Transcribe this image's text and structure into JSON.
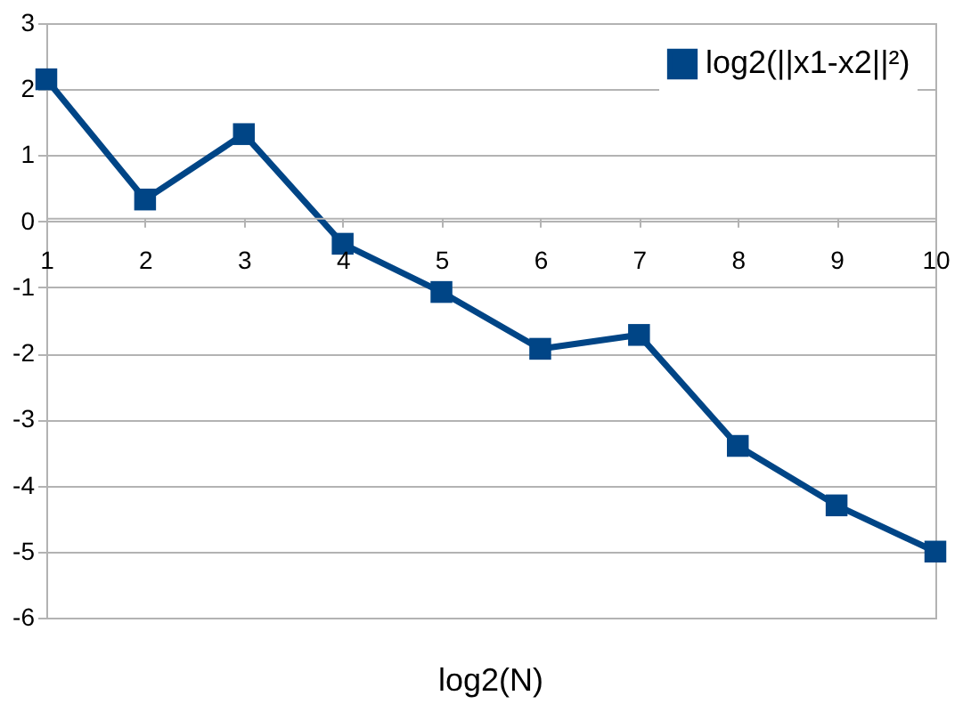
{
  "chart_data": {
    "type": "line",
    "xlabel": "log2(N)",
    "x": [
      1,
      2,
      3,
      4,
      5,
      6,
      7,
      8,
      9,
      10
    ],
    "series": [
      {
        "name": "log2(||x1-x2||²)",
        "color": "#004586",
        "values": [
          2.15,
          0.33,
          1.32,
          -0.34,
          -1.07,
          -1.93,
          -1.72,
          -3.4,
          -4.3,
          -5.0
        ]
      }
    ],
    "xlim": [
      1,
      10
    ],
    "xticks": [
      1,
      2,
      3,
      4,
      5,
      6,
      7,
      8,
      9,
      10
    ],
    "ylim": [
      -6,
      3
    ],
    "yticks": [
      -6,
      -5,
      -4,
      -3,
      -2,
      -1,
      0,
      1,
      2,
      3
    ],
    "grid": "y",
    "legend": "top right",
    "marker": "square",
    "line_style": "solid"
  }
}
